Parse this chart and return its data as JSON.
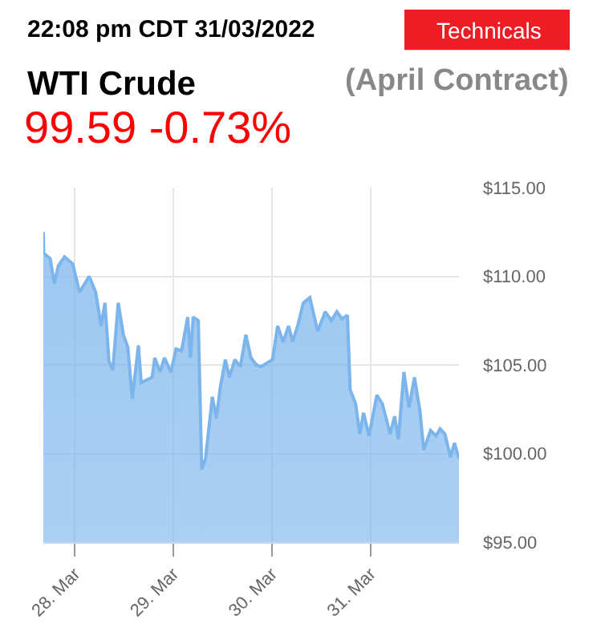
{
  "chart_data": {
    "type": "area",
    "title": "WTI Crude",
    "subtitle": "(April Contract)",
    "annotations": [
      "22:08 pm CDT 31/03/2022",
      "Technicals",
      "99.59 -0.73%"
    ],
    "x": [
      "2022-03-27T16:20",
      "2022-03-27T16:25",
      "2022-03-27T18:00",
      "2022-03-27T19:00",
      "2022-03-27T20:00",
      "2022-03-27T21:30",
      "2022-03-27T23:30",
      "2022-03-28T01:10",
      "2022-03-28T03:30",
      "2022-03-28T05:05",
      "2022-03-28T06:25",
      "2022-03-28T07:20",
      "2022-03-28T08:20",
      "2022-03-28T09:15",
      "2022-03-28T10:35",
      "2022-03-28T11:50",
      "2022-03-28T12:55",
      "2022-03-28T14:00",
      "2022-03-28T15:30",
      "2022-03-28T16:10",
      "2022-03-28T18:50",
      "2022-03-28T19:30",
      "2022-03-28T20:45",
      "2022-03-28T21:50",
      "2022-03-28T23:25",
      "2022-03-29T00:40",
      "2022-03-29T02:00",
      "2022-03-29T03:30",
      "2022-03-29T04:10",
      "2022-03-29T04:50",
      "2022-03-29T06:05",
      "2022-03-29T06:55",
      "2022-03-29T07:50",
      "2022-03-29T08:30",
      "2022-03-29T09:30",
      "2022-03-29T10:30",
      "2022-03-29T11:25",
      "2022-03-29T12:40",
      "2022-03-29T13:40",
      "2022-03-29T15:00",
      "2022-03-29T16:20",
      "2022-03-29T17:40",
      "2022-03-29T18:55",
      "2022-03-29T20:15",
      "2022-03-29T21:20",
      "2022-03-30T00:10",
      "2022-03-30T01:25",
      "2022-03-30T02:45",
      "2022-03-30T04:05",
      "2022-03-30T05:05",
      "2022-03-30T06:25",
      "2022-03-30T07:40",
      "2022-03-30T09:15",
      "2022-03-30T11:10",
      "2022-03-30T13:00",
      "2022-03-30T14:30",
      "2022-03-30T15:50",
      "2022-03-30T17:05",
      "2022-03-30T18:25",
      "2022-03-30T19:05",
      "2022-03-30T20:25",
      "2022-03-30T21:25",
      "2022-03-30T22:20",
      "2022-03-30T23:40",
      "2022-03-31T01:35",
      "2022-03-31T02:55",
      "2022-03-31T04:50",
      "2022-03-31T05:55",
      "2022-03-31T06:50",
      "2022-03-31T08:10",
      "2022-03-31T09:25",
      "2022-03-31T10:45",
      "2022-03-31T12:05",
      "2022-03-31T13:00",
      "2022-03-31T14:40",
      "2022-03-31T16:00",
      "2022-03-31T17:00",
      "2022-03-31T18:10",
      "2022-03-31T19:30",
      "2022-03-31T20:30",
      "2022-03-31T21:35"
    ],
    "series": [
      {
        "color": "#7cb5ec",
        "values": [
          112.5,
          111.3,
          111.0,
          109.6,
          110.6,
          111.1,
          110.7,
          109.1,
          110.0,
          109.1,
          107.2,
          108.5,
          105.2,
          104.7,
          108.5,
          106.7,
          106.0,
          103.1,
          106.1,
          104.0,
          104.3,
          105.4,
          104.6,
          105.4,
          104.6,
          105.9,
          105.8,
          107.7,
          105.4,
          107.7,
          107.5,
          99.1,
          99.7,
          101.1,
          103.2,
          102.0,
          103.7,
          105.3,
          104.3,
          105.3,
          104.9,
          106.7,
          105.4,
          105.0,
          104.9,
          105.3,
          107.2,
          106.3,
          107.2,
          106.3,
          107.3,
          108.5,
          108.8,
          106.9,
          108.0,
          107.5,
          108.0,
          107.6,
          107.8,
          103.6,
          102.8,
          101.1,
          102.3,
          101.0,
          103.3,
          102.8,
          101.1,
          102.1,
          100.8,
          104.6,
          102.6,
          104.3,
          102.4,
          100.2,
          101.3,
          101.0,
          101.4,
          101.1,
          99.8,
          100.6,
          99.7
        ]
      }
    ],
    "xlim": [
      "2022-03-27T16:20",
      "2022-03-31T21:35"
    ],
    "xticks": [
      {
        "value": "2022-03-28",
        "label": "28. Mar"
      },
      {
        "value": "2022-03-29",
        "label": "29. Mar"
      },
      {
        "value": "2022-03-30",
        "label": "30. Mar"
      },
      {
        "value": "2022-03-31",
        "label": "31. Mar"
      }
    ],
    "ylim": [
      95,
      115
    ],
    "yticks": [
      {
        "value": 95,
        "label": "$95.00"
      },
      {
        "value": 100,
        "label": "$100.00"
      },
      {
        "value": 105,
        "label": "$105.00"
      },
      {
        "value": 110,
        "label": "$110.00"
      },
      {
        "value": 115,
        "label": "$115.00"
      }
    ],
    "grid": true,
    "marker": "none",
    "line_style": "solid"
  }
}
